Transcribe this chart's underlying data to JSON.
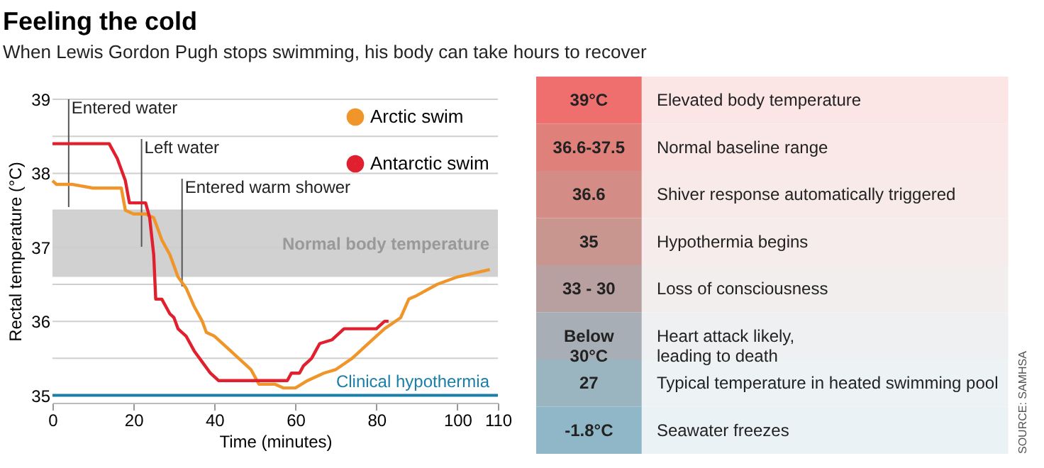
{
  "chart_data": [
    {
      "type": "line",
      "title": "Feeling the cold",
      "subtitle": "When Lewis Gordon Pugh stops swimming, his body can take hours to recover",
      "xlabel": "Time (minutes)",
      "ylabel": "Rectal temperature (°C)",
      "series": [
        {
          "name": "Arctic swim",
          "color": "#f0952a",
          "x": [
            0,
            1,
            5,
            10,
            17,
            18,
            20,
            23,
            25,
            27,
            29,
            31,
            33,
            35,
            37,
            38,
            40,
            43,
            46,
            49,
            51,
            55,
            57,
            60,
            63,
            67,
            70,
            74,
            78,
            82,
            86,
            88,
            90,
            95,
            100,
            104,
            108
          ],
          "values": [
            37.9,
            37.85,
            37.85,
            37.8,
            37.8,
            37.5,
            37.45,
            37.45,
            37.4,
            37.1,
            36.9,
            36.6,
            36.45,
            36.2,
            36.0,
            35.85,
            35.8,
            35.65,
            35.5,
            35.35,
            35.15,
            35.15,
            35.1,
            35.1,
            35.2,
            35.3,
            35.35,
            35.5,
            35.7,
            35.9,
            36.05,
            36.3,
            36.35,
            36.5,
            36.6,
            36.65,
            36.7
          ]
        },
        {
          "name": "Antarctic swim",
          "color": "#e0202e",
          "x": [
            0,
            14,
            16,
            18,
            19,
            23,
            24,
            25,
            25.5,
            27,
            28,
            29,
            30,
            31,
            33,
            35,
            37,
            39,
            40,
            41,
            58,
            59,
            61,
            62,
            64,
            65,
            66,
            69,
            70,
            72,
            80,
            82,
            83
          ],
          "values": [
            38.4,
            38.4,
            38.2,
            37.9,
            37.6,
            37.6,
            37.4,
            36.9,
            36.3,
            36.3,
            36.2,
            36.1,
            36.05,
            35.9,
            35.8,
            35.6,
            35.45,
            35.3,
            35.25,
            35.2,
            35.2,
            35.3,
            35.3,
            35.4,
            35.5,
            35.6,
            35.7,
            35.75,
            35.8,
            35.9,
            35.9,
            36.0,
            36.0
          ]
        }
      ],
      "xlim": [
        0,
        110
      ],
      "xticks": [
        0,
        20,
        40,
        60,
        80,
        100,
        110
      ],
      "ylim": [
        34.9,
        39
      ],
      "yticks": [
        35,
        {
          "value": 35.5,
          "label": null
        },
        36,
        {
          "value": 36.5,
          "label": null
        },
        37,
        {
          "value": 37.5,
          "label": null
        },
        38,
        {
          "value": 38.5,
          "label": null
        },
        39
      ],
      "grid": "y",
      "legend": "top right",
      "bands": [
        {
          "axis": "y",
          "from": 36.6,
          "to": 37.5,
          "label": "Normal body temperature",
          "color": "#cccccc"
        }
      ],
      "ref_lines": [
        {
          "axis": "x",
          "value": 4,
          "label": "Entered water",
          "color": "#555555"
        },
        {
          "axis": "x",
          "value": 22,
          "label": "Left water",
          "color": "#555555"
        },
        {
          "axis": "x",
          "value": 32,
          "label": "Entered warm shower",
          "color": "#555555"
        },
        {
          "axis": "y",
          "value": 35,
          "label": "Clinical hypothermia",
          "color": "#1a7fa8"
        }
      ]
    },
    {
      "type": "other",
      "y_categories": [
        "39°C",
        "36.6-37.5",
        "36.6",
        "35",
        "33 - 30",
        "Below\n30°C",
        "27",
        "-1.8°C"
      ],
      "y2_categories": [
        "Elevated body temperature",
        "Normal baseline range",
        "Shiver response automatically triggered",
        "Hypothermia begins",
        "Loss of consciousness",
        "Heart attack likely,\nleading to death",
        "Typical temperature in heated swimming pool",
        "Seawater freezes"
      ],
      "colors": [
        "#ef6f6f",
        "#e0807a",
        "#d48c86",
        "#c8958f",
        "#b9a0a0",
        "#a8aeb5",
        "#9ab4c0",
        "#8fb7c8"
      ],
      "annotations": [
        "SOURCE: SAMHSA"
      ]
    }
  ]
}
